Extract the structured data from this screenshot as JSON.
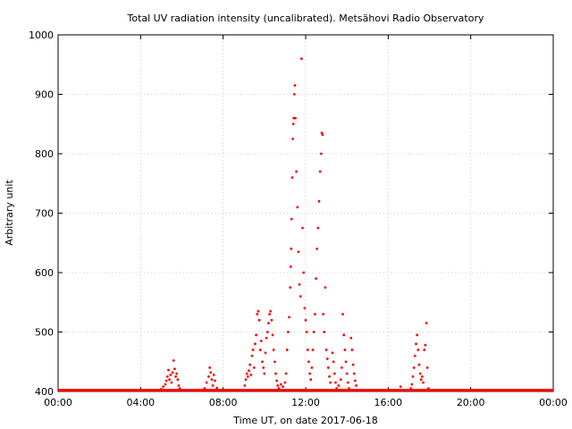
{
  "chart_data": {
    "type": "scatter",
    "title": "Total UV radiation intensity (uncalibrated). Metsähovi Radio Observatory",
    "xlabel": "Time UT, on date 2017-06-18",
    "ylabel": "Arbitrary unit",
    "xlim": [
      0,
      24
    ],
    "ylim": [
      400,
      1000
    ],
    "x_unit": "hours",
    "x_ticks": [
      {
        "value": 0,
        "label": "00:00"
      },
      {
        "value": 4,
        "label": "04:00"
      },
      {
        "value": 8,
        "label": "08:00"
      },
      {
        "value": 12,
        "label": "12:00"
      },
      {
        "value": 16,
        "label": "16:00"
      },
      {
        "value": 20,
        "label": "20:00"
      },
      {
        "value": 24,
        "label": "00:00"
      }
    ],
    "y_ticks": [
      {
        "value": 400,
        "label": "400"
      },
      {
        "value": 500,
        "label": "500"
      },
      {
        "value": 600,
        "label": "600"
      },
      {
        "value": 700,
        "label": "700"
      },
      {
        "value": 800,
        "label": "800"
      },
      {
        "value": 900,
        "label": "900"
      },
      {
        "value": 1000,
        "label": "1000"
      }
    ],
    "grid": true,
    "series_color": "#ff0000",
    "baseline": {
      "y": 402,
      "x_start": 0,
      "x_end": 24
    },
    "points": [
      [
        5.0,
        404
      ],
      [
        5.1,
        408
      ],
      [
        5.2,
        412
      ],
      [
        5.25,
        418
      ],
      [
        5.3,
        425
      ],
      [
        5.35,
        436
      ],
      [
        5.4,
        420
      ],
      [
        5.45,
        428
      ],
      [
        5.5,
        415
      ],
      [
        5.55,
        432
      ],
      [
        5.6,
        452
      ],
      [
        5.65,
        438
      ],
      [
        5.7,
        425
      ],
      [
        5.75,
        430
      ],
      [
        5.8,
        420
      ],
      [
        5.85,
        410
      ],
      [
        5.9,
        405
      ],
      [
        7.1,
        405
      ],
      [
        7.2,
        415
      ],
      [
        7.3,
        425
      ],
      [
        7.35,
        440
      ],
      [
        7.4,
        432
      ],
      [
        7.45,
        420
      ],
      [
        7.5,
        410
      ],
      [
        7.55,
        428
      ],
      [
        7.6,
        418
      ],
      [
        7.7,
        406
      ],
      [
        9.05,
        410
      ],
      [
        9.1,
        420
      ],
      [
        9.15,
        430
      ],
      [
        9.2,
        425
      ],
      [
        9.25,
        435
      ],
      [
        9.3,
        445
      ],
      [
        9.35,
        428
      ],
      [
        9.4,
        460
      ],
      [
        9.45,
        470
      ],
      [
        9.5,
        440
      ],
      [
        9.55,
        480
      ],
      [
        9.6,
        495
      ],
      [
        9.65,
        530
      ],
      [
        9.7,
        535
      ],
      [
        9.75,
        520
      ],
      [
        9.8,
        470
      ],
      [
        9.85,
        485
      ],
      [
        9.9,
        450
      ],
      [
        9.95,
        440
      ],
      [
        10.0,
        430
      ],
      [
        10.05,
        465
      ],
      [
        10.1,
        490
      ],
      [
        10.15,
        500
      ],
      [
        10.2,
        515
      ],
      [
        10.25,
        530
      ],
      [
        10.3,
        535
      ],
      [
        10.35,
        520
      ],
      [
        10.4,
        495
      ],
      [
        10.45,
        470
      ],
      [
        10.5,
        450
      ],
      [
        10.55,
        430
      ],
      [
        10.6,
        418
      ],
      [
        10.65,
        410
      ],
      [
        10.7,
        405
      ],
      [
        10.8,
        412
      ],
      [
        10.9,
        408
      ],
      [
        11.0,
        415
      ],
      [
        11.05,
        430
      ],
      [
        11.1,
        470
      ],
      [
        11.15,
        500
      ],
      [
        11.2,
        525
      ],
      [
        11.25,
        575
      ],
      [
        11.28,
        610
      ],
      [
        11.3,
        640
      ],
      [
        11.32,
        690
      ],
      [
        11.35,
        760
      ],
      [
        11.38,
        825
      ],
      [
        11.4,
        850
      ],
      [
        11.42,
        860
      ],
      [
        11.45,
        900
      ],
      [
        11.48,
        915
      ],
      [
        11.5,
        860
      ],
      [
        11.55,
        770
      ],
      [
        11.6,
        710
      ],
      [
        11.65,
        635
      ],
      [
        11.7,
        580
      ],
      [
        11.75,
        560
      ],
      [
        11.8,
        960
      ],
      [
        11.85,
        675
      ],
      [
        11.9,
        600
      ],
      [
        11.95,
        540
      ],
      [
        12.0,
        520
      ],
      [
        12.05,
        500
      ],
      [
        12.1,
        470
      ],
      [
        12.15,
        450
      ],
      [
        12.2,
        430
      ],
      [
        12.25,
        420
      ],
      [
        12.3,
        440
      ],
      [
        12.35,
        470
      ],
      [
        12.4,
        500
      ],
      [
        12.45,
        530
      ],
      [
        12.5,
        590
      ],
      [
        12.55,
        640
      ],
      [
        12.6,
        675
      ],
      [
        12.65,
        720
      ],
      [
        12.7,
        770
      ],
      [
        12.75,
        800
      ],
      [
        12.78,
        835
      ],
      [
        12.82,
        832
      ],
      [
        12.85,
        530
      ],
      [
        12.9,
        500
      ],
      [
        12.95,
        575
      ],
      [
        13.0,
        470
      ],
      [
        13.05,
        455
      ],
      [
        13.1,
        440
      ],
      [
        13.15,
        425
      ],
      [
        13.2,
        415
      ],
      [
        13.3,
        465
      ],
      [
        13.35,
        450
      ],
      [
        13.4,
        430
      ],
      [
        13.45,
        415
      ],
      [
        13.5,
        405
      ],
      [
        13.6,
        410
      ],
      [
        13.7,
        420
      ],
      [
        13.75,
        440
      ],
      [
        13.8,
        530
      ],
      [
        13.85,
        495
      ],
      [
        13.9,
        470
      ],
      [
        13.95,
        450
      ],
      [
        14.0,
        430
      ],
      [
        14.05,
        415
      ],
      [
        14.1,
        405
      ],
      [
        14.2,
        490
      ],
      [
        14.25,
        470
      ],
      [
        14.3,
        445
      ],
      [
        14.35,
        430
      ],
      [
        14.4,
        418
      ],
      [
        14.45,
        410
      ],
      [
        16.6,
        408
      ],
      [
        17.1,
        405
      ],
      [
        17.15,
        412
      ],
      [
        17.2,
        425
      ],
      [
        17.25,
        440
      ],
      [
        17.3,
        460
      ],
      [
        17.35,
        480
      ],
      [
        17.4,
        495
      ],
      [
        17.45,
        470
      ],
      [
        17.5,
        445
      ],
      [
        17.55,
        430
      ],
      [
        17.6,
        420
      ],
      [
        17.65,
        425
      ],
      [
        17.7,
        415
      ],
      [
        17.75,
        470
      ],
      [
        17.8,
        478
      ],
      [
        17.85,
        515
      ],
      [
        17.9,
        440
      ],
      [
        17.95,
        405
      ]
    ]
  }
}
